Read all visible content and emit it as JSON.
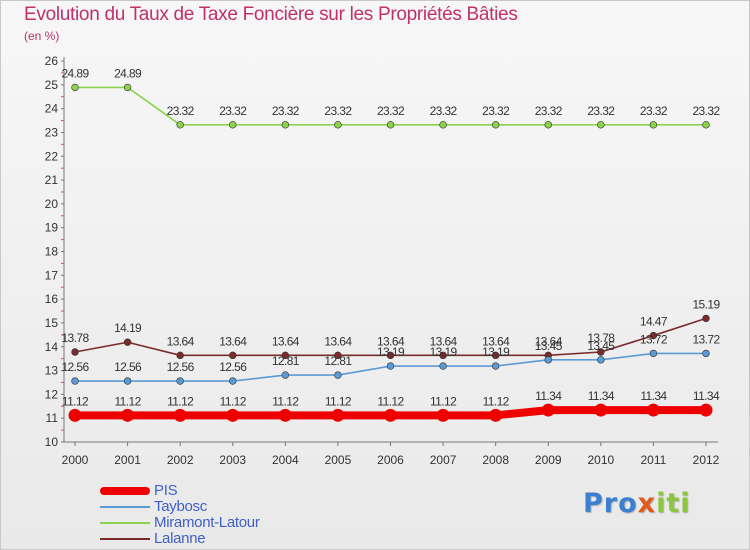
{
  "title": "Evolution du Taux de Taxe Foncière sur les Propriétés Bâties",
  "subtitle": "(en %)",
  "logo": {
    "part1": "Pro",
    "part2": "x",
    "part3": "iti"
  },
  "chart_data": {
    "type": "line",
    "title": "Evolution du Taux de Taxe Foncière sur les Propriétés Bâties",
    "ylabel": "(en %)",
    "xlabel": "",
    "ylim": [
      10,
      26
    ],
    "yticks": [
      10,
      11,
      12,
      13,
      14,
      15,
      16,
      17,
      18,
      19,
      20,
      21,
      22,
      23,
      24,
      25,
      26
    ],
    "categories": [
      "2000",
      "2001",
      "2002",
      "2003",
      "2004",
      "2005",
      "2006",
      "2007",
      "2008",
      "2009",
      "2010",
      "2011",
      "2012"
    ],
    "series": [
      {
        "name": "Miramont-Latour",
        "color": "#8cd24c",
        "values": [
          24.89,
          24.89,
          23.32,
          23.32,
          23.32,
          23.32,
          23.32,
          23.32,
          23.32,
          23.32,
          23.32,
          23.32,
          23.32
        ],
        "labels": [
          "24.89",
          "24.89",
          "23.32",
          "23.32",
          "23.32",
          "23.32",
          "23.32",
          "23.32",
          "23.32",
          "23.32",
          "23.32",
          "23.32",
          "23.32"
        ]
      },
      {
        "name": "Lalanne",
        "color": "#7a2c2c",
        "values": [
          13.78,
          14.19,
          13.64,
          13.64,
          13.64,
          13.64,
          13.64,
          13.64,
          13.64,
          13.64,
          13.78,
          14.47,
          15.19
        ],
        "labels": [
          "13.78",
          "14.19",
          "13.64",
          "13.64",
          "13.64",
          "13.64",
          "13.64",
          "13.64",
          "13.64",
          "13.64",
          "13.78",
          "14.47",
          "15.19"
        ]
      },
      {
        "name": "Taybosc",
        "color": "#5c9ad4",
        "values": [
          12.56,
          12.56,
          12.56,
          12.56,
          12.81,
          12.81,
          13.19,
          13.19,
          13.19,
          13.45,
          13.45,
          13.72,
          13.72
        ],
        "labels": [
          "12.56",
          "12.56",
          "12.56",
          "12.56",
          "12.81",
          "12.81",
          "13.19",
          "13.19",
          "13.19",
          "13.45",
          "13.45",
          "13.72",
          "13.72"
        ]
      },
      {
        "name": "PIS",
        "color": "#ee0000",
        "values": [
          11.12,
          11.12,
          11.12,
          11.12,
          11.12,
          11.12,
          11.12,
          11.12,
          11.12,
          11.34,
          11.34,
          11.34,
          11.34
        ],
        "labels": [
          "11.12",
          "11.12",
          "11.12",
          "11.12",
          "11.12",
          "11.12",
          "11.12",
          "11.12",
          "11.12",
          "11.34",
          "11.34",
          "11.34",
          "11.34"
        ]
      }
    ],
    "legend": [
      "PIS",
      "Taybosc",
      "Miramont-Latour",
      "Lalanne"
    ],
    "legend_position": "bottom-left",
    "grid": false
  }
}
